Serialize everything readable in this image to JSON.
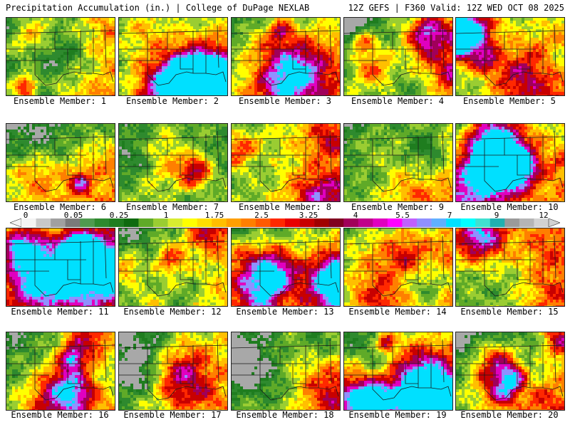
{
  "header": {
    "title": "Precipitation Accumulation (in.) | College of DuPage NEXLAB",
    "run_info": "12Z GEFS | F360 Valid: 12Z WED OCT 08 2025"
  },
  "panel_label_prefix": "Ensemble Member: ",
  "members": [
    1,
    2,
    3,
    4,
    5,
    6,
    7,
    8,
    9,
    10,
    11,
    12,
    13,
    14,
    15,
    16,
    17,
    18,
    19,
    20
  ],
  "legend": {
    "labels": [
      "0",
      "0.05",
      "0.25",
      "1",
      "1.75",
      "2.5",
      "3.25",
      "4",
      "5.5",
      "7",
      "9",
      "12"
    ],
    "colors": [
      "#f4f4f4",
      "#c8c8c8",
      "#a0a0a0",
      "#7a7a7a",
      "#4f9a4f",
      "#2e8a2e",
      "#1f7d1f",
      "#0f6a0f",
      "#5faa28",
      "#9acd32",
      "#d8ec30",
      "#ffff00",
      "#ffdf00",
      "#ffbf00",
      "#ff9f00",
      "#ff7f00",
      "#ff5a00",
      "#ff2800",
      "#e80000",
      "#c80000",
      "#a00000",
      "#800020",
      "#a0005a",
      "#c0008a",
      "#e000c0",
      "#ff00ff",
      "#c060ff",
      "#9090ff",
      "#60b0ff",
      "#00e0ff",
      "#00ffff",
      "#40e0d0",
      "#20b0b0",
      "#9a9a9a",
      "#b5b5b5",
      "#d2d2d2"
    ]
  },
  "scale_colors": [
    "#1f7d1f",
    "#2e8a2e",
    "#5faa28",
    "#9acd32",
    "#ffff00",
    "#ffbf00",
    "#ff7f00",
    "#ff2800",
    "#c80000",
    "#a0005a",
    "#e000c0",
    "#9090ff",
    "#00e0ff"
  ],
  "gray_color": "#a8a8a8",
  "border_color": "#1a1a1a"
}
